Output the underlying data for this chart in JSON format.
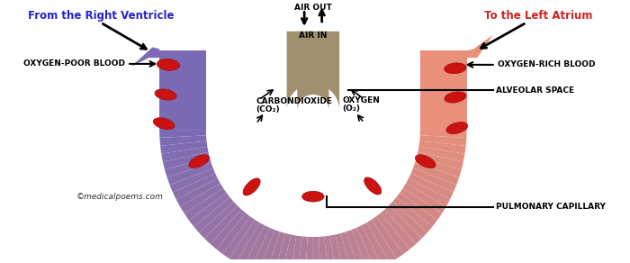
{
  "bg_color": "#ffffff",
  "alv_color": "#a09070",
  "left_cap_color": "#7b6bb5",
  "right_cap_color": "#e8907a",
  "rbc_color": "#cc1111",
  "rbc_edge": "#991111",
  "left_label": "From the Right Ventricle",
  "left_label_color": "#2222cc",
  "right_label": "To the Left Atrium",
  "right_label_color": "#cc2222",
  "copyright": "©medicalpoems.com",
  "ann_oxygen_poor": "OXYGEN-POOR BLOOD",
  "ann_oxygen_rich": "OXYGEN-RICH BLOOD",
  "ann_air_out": "AIR OUT",
  "ann_air_in": "AIR IN",
  "ann_alveolar": "ALVEOLAR SPACE",
  "ann_co2_line1": "CARBONDIOXIDE",
  "ann_co2_line2": "(CO₂)",
  "ann_o2_line1": "OXYGEN",
  "ann_o2_line2": "(O₂)",
  "ann_pulmonary": "PULMONARY CAPILLARY"
}
